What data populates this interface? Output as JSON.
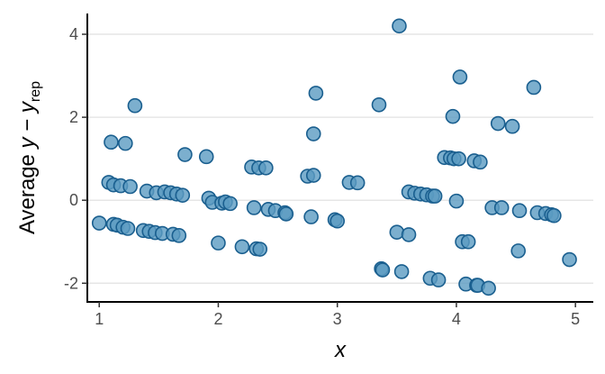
{
  "chart_data": {
    "type": "scatter",
    "xlabel": "x",
    "ylabel": {
      "prefix": "Average ",
      "y": "y",
      "minus": " − ",
      "y2": "y",
      "subscript": "rep"
    },
    "xlim": [
      0.9,
      5.15
    ],
    "ylim": [
      -2.45,
      4.5
    ],
    "x_ticks": [
      1,
      2,
      3,
      4,
      5
    ],
    "y_ticks": [
      -2,
      0,
      2,
      4
    ],
    "grid": "horizontal-major",
    "point_color": "#5b9bc2",
    "point_edge_color": "#1a5f8f",
    "points": [
      [
        1.0,
        -0.55
      ],
      [
        1.08,
        0.43
      ],
      [
        1.1,
        1.4
      ],
      [
        1.12,
        0.37
      ],
      [
        1.12,
        -0.58
      ],
      [
        1.15,
        -0.6
      ],
      [
        1.18,
        0.35
      ],
      [
        1.2,
        -0.65
      ],
      [
        1.22,
        1.37
      ],
      [
        1.24,
        -0.68
      ],
      [
        1.26,
        0.33
      ],
      [
        1.3,
        2.28
      ],
      [
        1.37,
        -0.73
      ],
      [
        1.4,
        0.22
      ],
      [
        1.42,
        -0.75
      ],
      [
        1.47,
        -0.78
      ],
      [
        1.48,
        0.18
      ],
      [
        1.53,
        -0.8
      ],
      [
        1.55,
        0.2
      ],
      [
        1.6,
        0.18
      ],
      [
        1.62,
        -0.82
      ],
      [
        1.65,
        0.15
      ],
      [
        1.67,
        -0.85
      ],
      [
        1.7,
        0.12
      ],
      [
        1.72,
        1.1
      ],
      [
        1.9,
        1.05
      ],
      [
        1.92,
        0.05
      ],
      [
        1.95,
        -0.05
      ],
      [
        2.0,
        -1.03
      ],
      [
        2.03,
        -0.07
      ],
      [
        2.06,
        -0.04
      ],
      [
        2.1,
        -0.08
      ],
      [
        2.2,
        -1.12
      ],
      [
        2.28,
        0.8
      ],
      [
        2.3,
        -0.18
      ],
      [
        2.32,
        -1.17
      ],
      [
        2.34,
        0.78
      ],
      [
        2.35,
        -1.18
      ],
      [
        2.4,
        0.78
      ],
      [
        2.42,
        -0.22
      ],
      [
        2.48,
        -0.25
      ],
      [
        2.56,
        -0.3
      ],
      [
        2.57,
        -0.33
      ],
      [
        2.75,
        0.58
      ],
      [
        2.78,
        -0.4
      ],
      [
        2.8,
        1.6
      ],
      [
        2.8,
        0.6
      ],
      [
        2.82,
        2.58
      ],
      [
        2.98,
        -0.47
      ],
      [
        3.0,
        -0.5
      ],
      [
        3.1,
        0.43
      ],
      [
        3.17,
        0.42
      ],
      [
        3.35,
        2.3
      ],
      [
        3.37,
        -1.65
      ],
      [
        3.38,
        -1.68
      ],
      [
        3.5,
        -0.77
      ],
      [
        3.52,
        4.2
      ],
      [
        3.54,
        -1.72
      ],
      [
        3.6,
        -0.83
      ],
      [
        3.6,
        0.2
      ],
      [
        3.65,
        0.17
      ],
      [
        3.7,
        0.15
      ],
      [
        3.75,
        0.13
      ],
      [
        3.78,
        -1.88
      ],
      [
        3.8,
        0.1
      ],
      [
        3.82,
        0.1
      ],
      [
        3.85,
        -1.92
      ],
      [
        3.9,
        1.03
      ],
      [
        3.95,
        1.02
      ],
      [
        3.97,
        2.02
      ],
      [
        3.98,
        1.0
      ],
      [
        4.0,
        -0.02
      ],
      [
        4.02,
        1.0
      ],
      [
        4.03,
        2.97
      ],
      [
        4.05,
        -1.0
      ],
      [
        4.08,
        -2.02
      ],
      [
        4.1,
        -1.0
      ],
      [
        4.15,
        0.95
      ],
      [
        4.17,
        -2.05
      ],
      [
        4.18,
        -2.05
      ],
      [
        4.2,
        0.92
      ],
      [
        4.27,
        -2.12
      ],
      [
        4.3,
        -0.18
      ],
      [
        4.35,
        1.85
      ],
      [
        4.38,
        -0.18
      ],
      [
        4.47,
        1.78
      ],
      [
        4.52,
        -1.22
      ],
      [
        4.53,
        -0.25
      ],
      [
        4.65,
        2.72
      ],
      [
        4.68,
        -0.3
      ],
      [
        4.75,
        -0.32
      ],
      [
        4.8,
        -0.35
      ],
      [
        4.82,
        -0.37
      ],
      [
        4.95,
        -1.43
      ]
    ]
  }
}
